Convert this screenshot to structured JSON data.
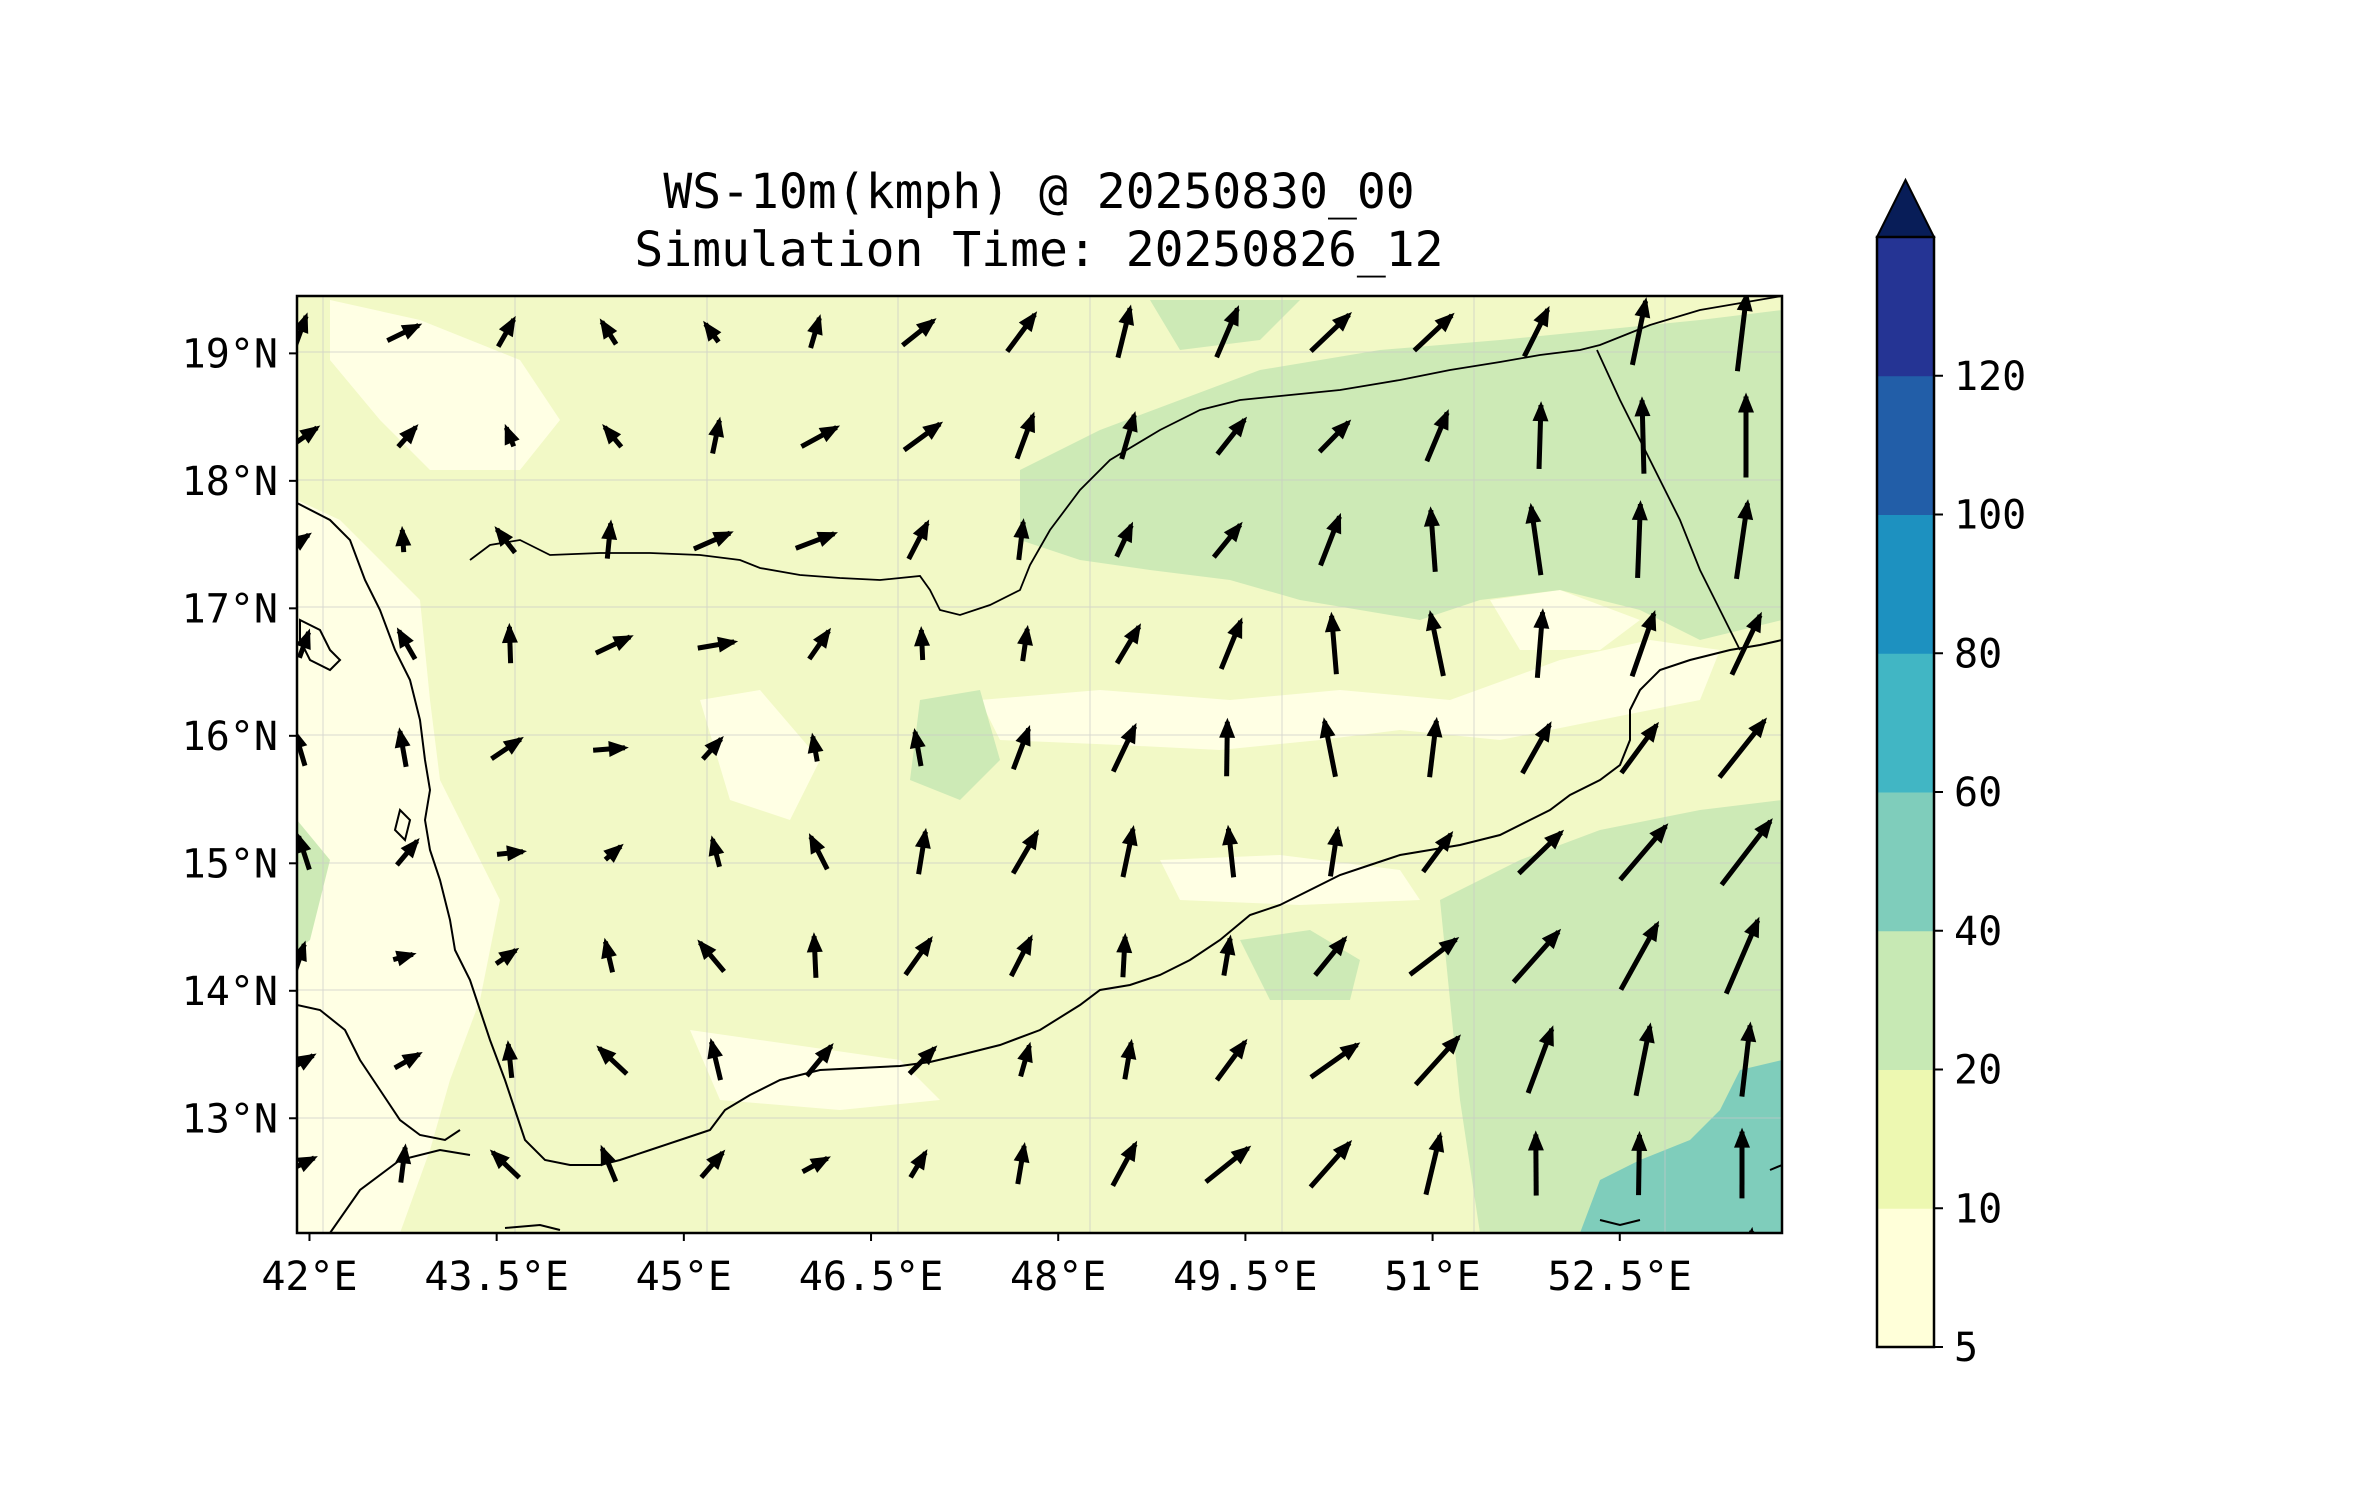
{
  "title": {
    "line1": "WS-10m(kmph) @ 20250830_00",
    "line2": "Simulation Time: 20250826_12"
  },
  "map": {
    "lon_range": [
      41.9,
      53.8
    ],
    "lat_range": [
      12.1,
      19.45
    ],
    "x_ticks": [
      "42°E",
      "43.5°E",
      "45°E",
      "46.5°E",
      "48°E",
      "49.5°E",
      "51°E",
      "52.5°E"
    ],
    "x_tick_values": [
      42,
      43.5,
      45,
      46.5,
      48,
      49.5,
      51,
      52.5
    ],
    "y_ticks": [
      "19°N",
      "18°N",
      "17°N",
      "16°N",
      "15°N",
      "14°N",
      "13°N"
    ],
    "y_tick_values": [
      19,
      18,
      17,
      16,
      15,
      14,
      13
    ],
    "gridlines": true,
    "background_color": "#f2f9c6"
  },
  "colorbar": {
    "levels": [
      5,
      10,
      20,
      40,
      60,
      80,
      100,
      120
    ],
    "labels": [
      "5",
      "10",
      "20",
      "40",
      "60",
      "80",
      "100",
      "120"
    ],
    "colors": [
      "#ffffd9",
      "#edf8b1",
      "#c7e9b4",
      "#7fcdbb",
      "#41b6c4",
      "#1d91c0",
      "#225ea8",
      "#253494"
    ],
    "extend_color": "#081d58",
    "extend": "max"
  }
}
